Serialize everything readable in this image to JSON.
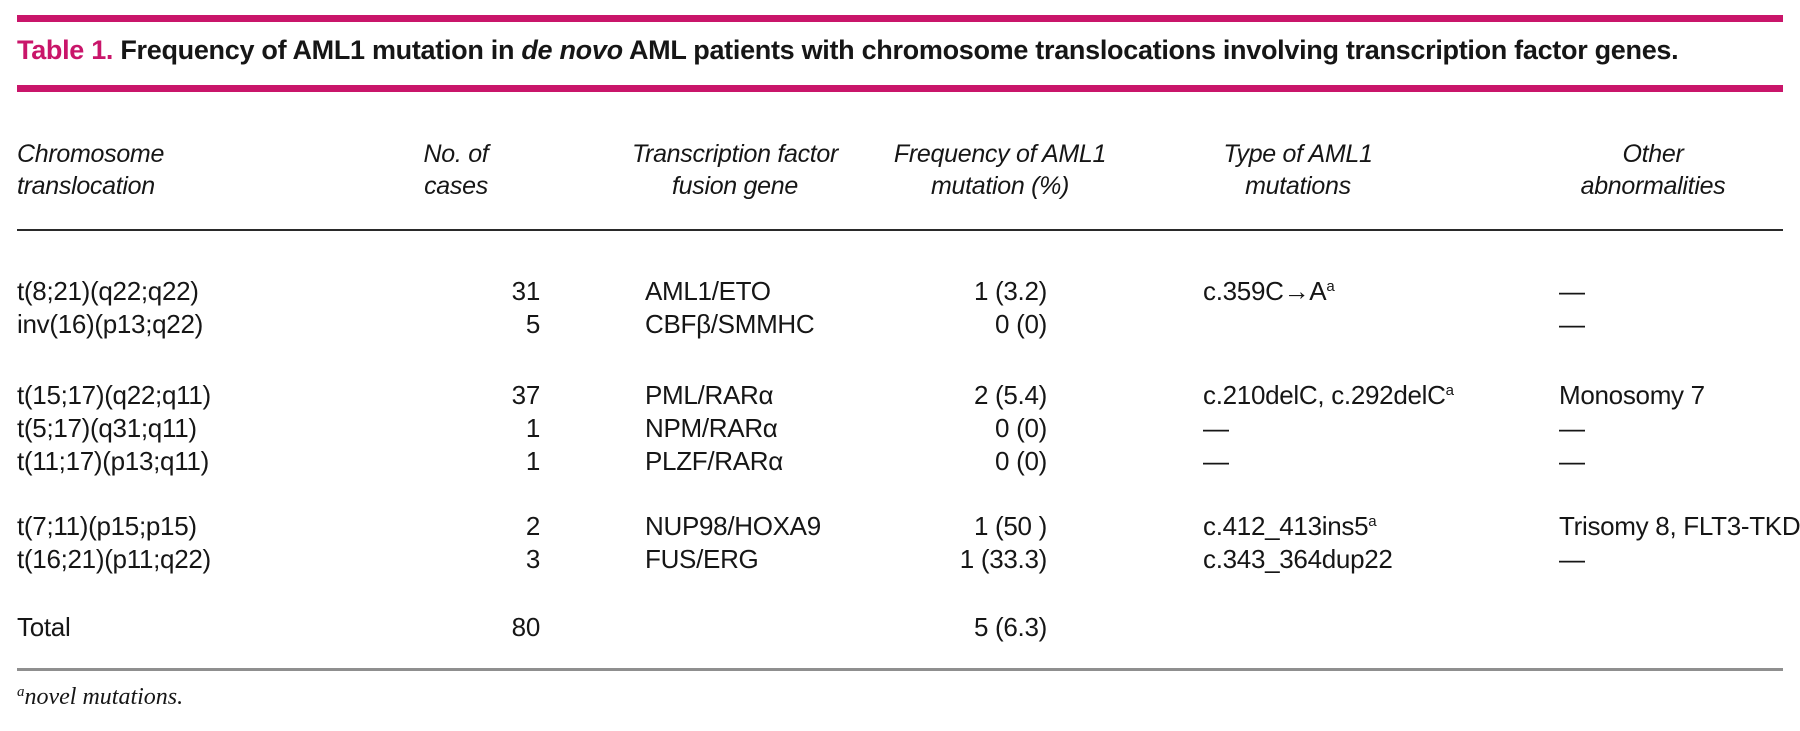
{
  "title": {
    "label": "Table 1.",
    "text_before_italic": " Frequency of AML1 mutation in ",
    "italic": "de novo",
    "text_after_italic": " AML patients with chromosome translocations involving transcription factor genes."
  },
  "colors": {
    "accent_pink": "#c9156a",
    "header_rule_black": "#2a2a2a",
    "bottom_rule_gray": "#8f8f8f",
    "text": "#161616"
  },
  "columns": [
    {
      "label_line1": "Chromosome",
      "label_line2": "translocation"
    },
    {
      "label_line1": "No. of",
      "label_line2": "cases"
    },
    {
      "label_line1": "Transcription factor",
      "label_line2": "fusion gene"
    },
    {
      "label_line1": "Frequency of AML1",
      "label_line2": "mutation (%)"
    },
    {
      "label_line1": "Type of AML1",
      "label_line2": "mutations"
    },
    {
      "label_line1": "Other",
      "label_line2": "abnormalities"
    }
  ],
  "groups": [
    {
      "rows": [
        {
          "translocation": "t(8;21)(q22;q22)",
          "cases": "31",
          "fusion_gene": "AML1/ETO",
          "frequency": "1 (3.2)",
          "mutations": "c.359C→A",
          "mutations_sup": "a",
          "other": "—"
        },
        {
          "translocation": "inv(16)(p13;q22)",
          "cases": "5",
          "fusion_gene": "CBFβ/SMMHC",
          "frequency": "0 (0)",
          "mutations": "",
          "mutations_sup": "",
          "other": "—"
        }
      ]
    },
    {
      "rows": [
        {
          "translocation": "t(15;17)(q22;q11)",
          "cases": "37",
          "fusion_gene": "PML/RARα",
          "frequency": "2 (5.4)",
          "mutations": "c.210delC, c.292delC",
          "mutations_sup": "a",
          "other": "Monosomy 7"
        },
        {
          "translocation": "t(5;17)(q31;q11)",
          "cases": "1",
          "fusion_gene": "NPM/RARα",
          "frequency": "0 (0)",
          "mutations": "—",
          "mutations_sup": "",
          "other": "—"
        },
        {
          "translocation": "t(11;17)(p13;q11)",
          "cases": "1",
          "fusion_gene": "PLZF/RARα",
          "frequency": "0 (0)",
          "mutations": "—",
          "mutations_sup": "",
          "other": "—"
        }
      ]
    },
    {
      "rows": [
        {
          "translocation": "t(7;11)(p15;p15)",
          "cases": "2",
          "fusion_gene": "NUP98/HOXA9",
          "frequency": "1 (50 )",
          "mutations": "c.412_413ins5",
          "mutations_sup": "a",
          "other": "Trisomy 8, FLT3-TKD"
        },
        {
          "translocation": "t(16;21)(p11;q22)",
          "cases": "3",
          "fusion_gene": "FUS/ERG",
          "frequency": "1 (33.3)",
          "mutations": "c.343_364dup22",
          "mutations_sup": "",
          "other": "—"
        }
      ]
    }
  ],
  "total_row": {
    "translocation": "Total",
    "cases": "80",
    "frequency": "5 (6.3)"
  },
  "footnote": {
    "sup": "a",
    "text": "novel mutations."
  }
}
